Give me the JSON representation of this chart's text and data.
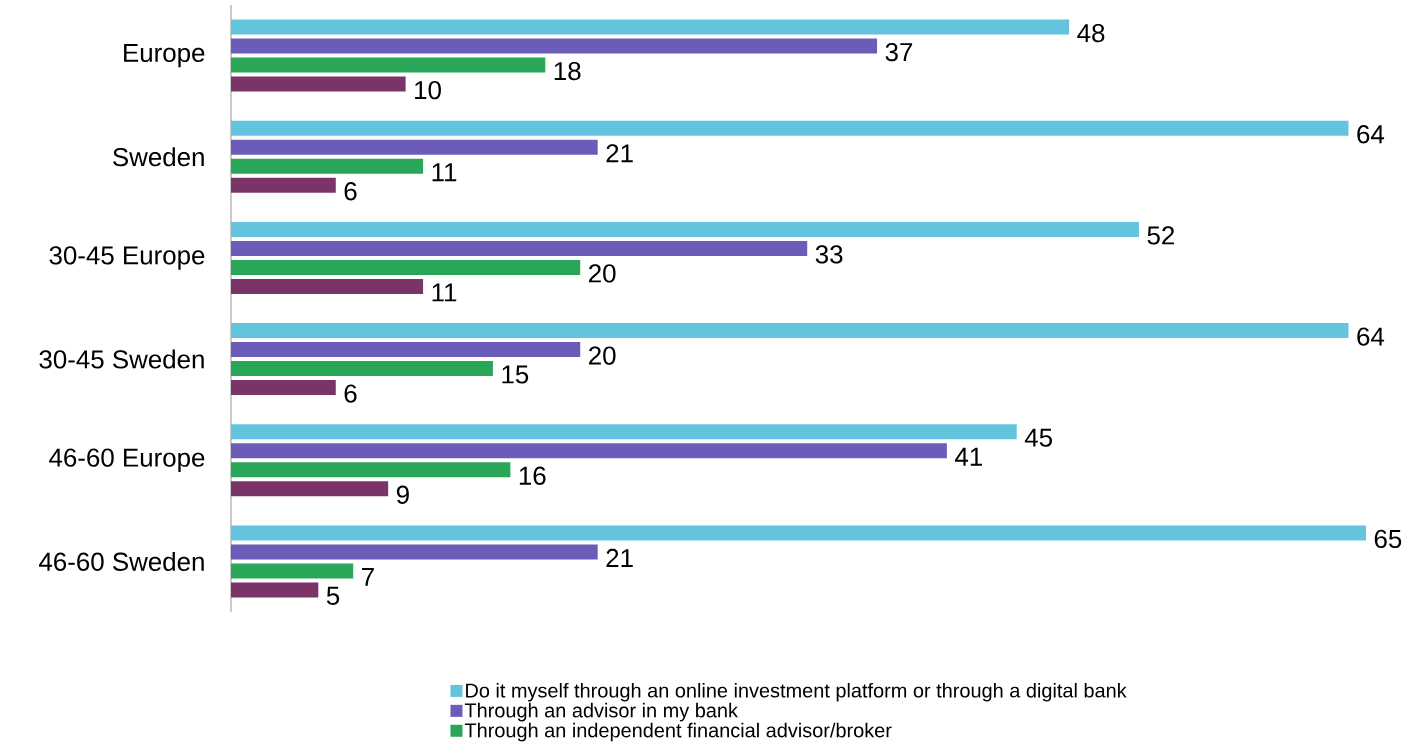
{
  "chart_data": {
    "type": "bar",
    "orientation": "horizontal",
    "categories": [
      "Europe",
      "Sweden",
      "30-45  Europe",
      "30-45 Sweden",
      "46-60 Europe",
      "46-60 Sweden"
    ],
    "series": [
      {
        "name": "Do it myself through an online investment platform or through a digital bank",
        "color": "#64c4de",
        "values": [
          48,
          64,
          52,
          64,
          45,
          65
        ]
      },
      {
        "name": "Through an advisor in my bank",
        "color": "#6a5cb8",
        "values": [
          37,
          21,
          33,
          20,
          41,
          21
        ]
      },
      {
        "name": "Through an independent financial advisor/broker",
        "color": "#2aa659",
        "values": [
          18,
          11,
          20,
          15,
          16,
          7
        ]
      },
      {
        "color": "#7a3467",
        "values": [
          10,
          6,
          11,
          6,
          9,
          5
        ]
      }
    ],
    "data_labels": true,
    "legend": "bottom"
  }
}
